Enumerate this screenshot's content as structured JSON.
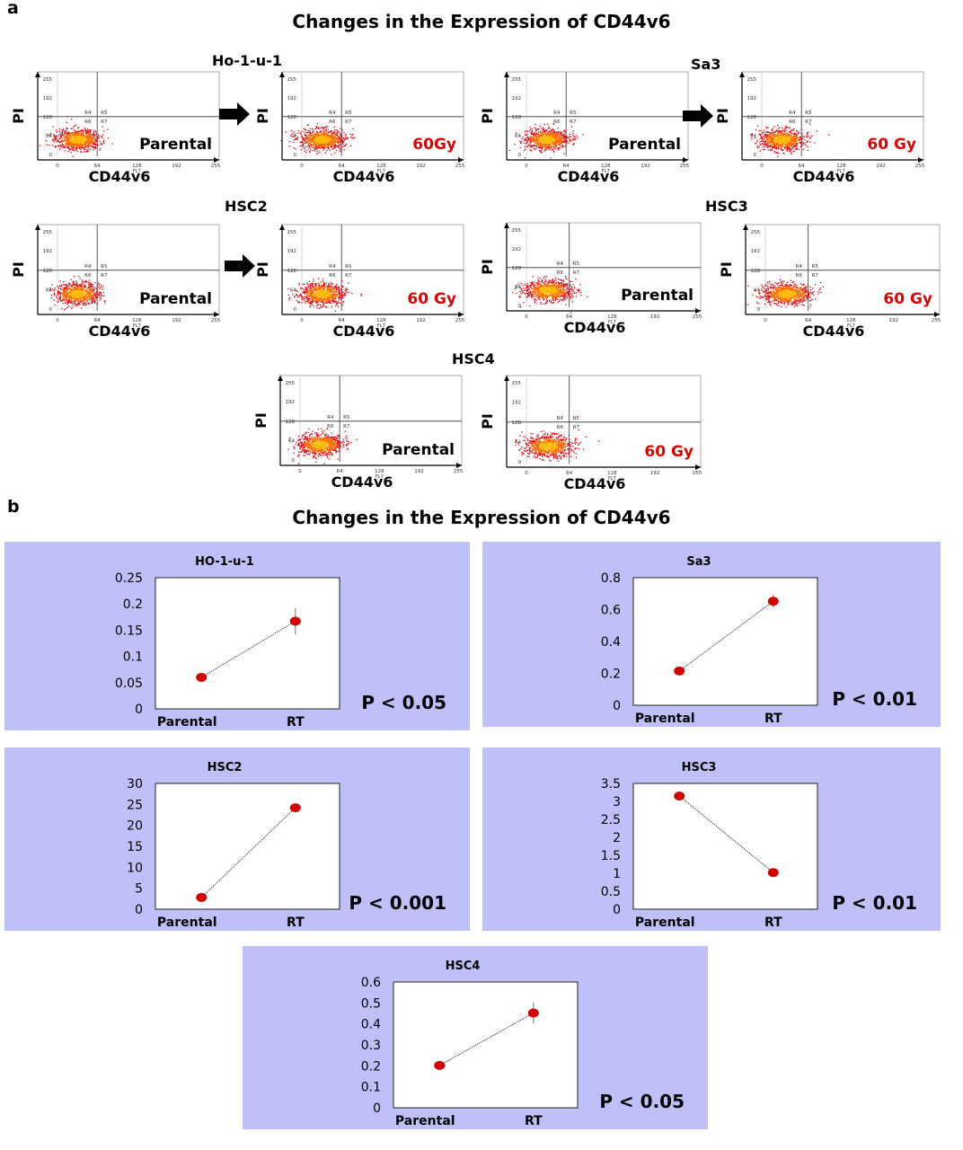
{
  "panel_a": {
    "letter": "a",
    "title": "Changes in the Expression of CD44v6",
    "groups": [
      {
        "name": "Ho-1-u-1",
        "plots": [
          {
            "xlabel": "CD44v6",
            "ylabel": "PI",
            "tag": "Parental",
            "tag_color": "#000000",
            "yticks": [
              "255",
              "192",
              "128",
              "64",
              "0"
            ],
            "xticks": [
              "0",
              "64",
              "128",
              "192",
              "255"
            ]
          },
          {
            "xlabel": "CD44v6",
            "ylabel": "PI",
            "tag": "60Gy",
            "tag_color": "#e00000",
            "yticks": [
              "255",
              "192",
              "128",
              "64",
              "0"
            ],
            "xticks": [
              "0",
              "64",
              "128",
              "192",
              "255"
            ]
          }
        ]
      },
      {
        "name": "Sa3",
        "plots": [
          {
            "xlabel": "CD44v6",
            "ylabel": "PI",
            "tag": "Parental",
            "tag_color": "#000000",
            "yticks": [
              "255",
              "192",
              "128",
              "64",
              "0"
            ],
            "xticks": [
              "0",
              "64",
              "128",
              "192",
              "255"
            ]
          },
          {
            "xlabel": "CD44v6",
            "ylabel": "PI",
            "tag": "60 Gy",
            "tag_color": "#e00000",
            "yticks": [
              "255",
              "192",
              "128",
              "64",
              "0"
            ],
            "xticks": [
              "0",
              "64",
              "128",
              "192",
              "255"
            ]
          }
        ]
      },
      {
        "name": "HSC2",
        "plots": [
          {
            "xlabel": "CD44v6",
            "ylabel": "PI",
            "tag": "Parental",
            "tag_color": "#000000",
            "yticks": [
              "255",
              "192",
              "128",
              "64",
              "0"
            ],
            "xticks": [
              "0",
              "64",
              "128",
              "192",
              "255"
            ]
          },
          {
            "xlabel": "CD44v6",
            "ylabel": "PI",
            "tag": "60 Gy",
            "tag_color": "#e00000",
            "yticks": [
              "255",
              "192",
              "128",
              "64",
              "0"
            ],
            "xticks": [
              "0",
              "64",
              "128",
              "192",
              "255"
            ]
          }
        ]
      },
      {
        "name": "HSC3",
        "plots": [
          {
            "xlabel": "CD44v6",
            "ylabel": "PI",
            "tag": "Parental",
            "tag_color": "#000000",
            "yticks": [
              "255",
              "192",
              "128",
              "64",
              "0"
            ],
            "xticks": [
              "0",
              "64",
              "128",
              "192",
              "255"
            ]
          },
          {
            "xlabel": "CD44v6",
            "ylabel": "PI",
            "tag": "60 Gy",
            "tag_color": "#e00000",
            "yticks": [
              "255",
              "192",
              "128",
              "64",
              "0"
            ],
            "xticks": [
              "0",
              "64",
              "128",
              "192",
              "255"
            ]
          }
        ]
      },
      {
        "name": "HSC4",
        "plots": [
          {
            "xlabel": "CD44v6",
            "ylabel": "PI",
            "tag": "Parental",
            "tag_color": "#000000",
            "yticks": [
              "255",
              "192",
              "128",
              "64",
              "0"
            ],
            "xticks": [
              "0",
              "64",
              "128",
              "192",
              "255"
            ]
          },
          {
            "xlabel": "CD44v6",
            "ylabel": "PI",
            "tag": "60 Gy",
            "tag_color": "#e00000",
            "yticks": [
              "255",
              "192",
              "128",
              "64",
              "0"
            ],
            "xticks": [
              "0",
              "64",
              "128",
              "192",
              "255"
            ]
          }
        ]
      }
    ],
    "region_labels": [
      "R4",
      "R5",
      "R6",
      "R7"
    ],
    "cloud_colors": [
      "#e8000a",
      "#ff6a00",
      "#ffb800"
    ]
  },
  "panel_b": {
    "letter": "b",
    "title": "Changes in the Expression of CD44v6"
  },
  "chart_data": [
    {
      "type": "scatter",
      "title": "HO-1-u-1",
      "categories": [
        "Parental",
        "RT"
      ],
      "values": [
        0.06,
        0.167
      ],
      "error": [
        0.003,
        0.025
      ],
      "ylim": [
        0,
        0.25
      ],
      "yticks": [
        "0",
        "0.05",
        "0.1",
        "0.15",
        "0.2",
        "0.25"
      ],
      "p_value": "P < 0.05"
    },
    {
      "type": "scatter",
      "title": "Sa3",
      "categories": [
        "Parental",
        "RT"
      ],
      "values": [
        0.215,
        0.652
      ],
      "error": [
        0.01,
        0.04
      ],
      "ylim": [
        0,
        0.8
      ],
      "yticks": [
        "0",
        "0.2",
        "0.4",
        "0.6",
        "0.8"
      ],
      "p_value": "P < 0.01"
    },
    {
      "type": "scatter",
      "title": "HSC2",
      "categories": [
        "Parental",
        "RT"
      ],
      "values": [
        2.8,
        24.2
      ],
      "error": [
        0.3,
        0.6
      ],
      "ylim": [
        0,
        30
      ],
      "yticks": [
        "0",
        "5",
        "10",
        "15",
        "20",
        "25",
        "30"
      ],
      "p_value": "P < 0.001"
    },
    {
      "type": "scatter",
      "title": "HSC3",
      "categories": [
        "Parental",
        "RT"
      ],
      "values": [
        3.15,
        1.02
      ],
      "error": [
        0.08,
        0.05
      ],
      "ylim": [
        0,
        3.5
      ],
      "yticks": [
        "0",
        "0.5",
        "1",
        "1.5",
        "2",
        "2.5",
        "3",
        "3.5"
      ],
      "p_value": "P < 0.01"
    },
    {
      "type": "scatter",
      "title": "HSC4",
      "categories": [
        "Parental",
        "RT"
      ],
      "values": [
        0.202,
        0.452
      ],
      "error": [
        0.008,
        0.05
      ],
      "ylim": [
        0,
        0.6
      ],
      "yticks": [
        "0",
        "0.1",
        "0.2",
        "0.3",
        "0.4",
        "0.5",
        "0.6"
      ],
      "p_value": "P < 0.05"
    }
  ],
  "style": {
    "point_color": "#d40000",
    "line_color": "#000000",
    "box_bg": "#bfc0f8",
    "plot_bg": "#ffffff"
  }
}
